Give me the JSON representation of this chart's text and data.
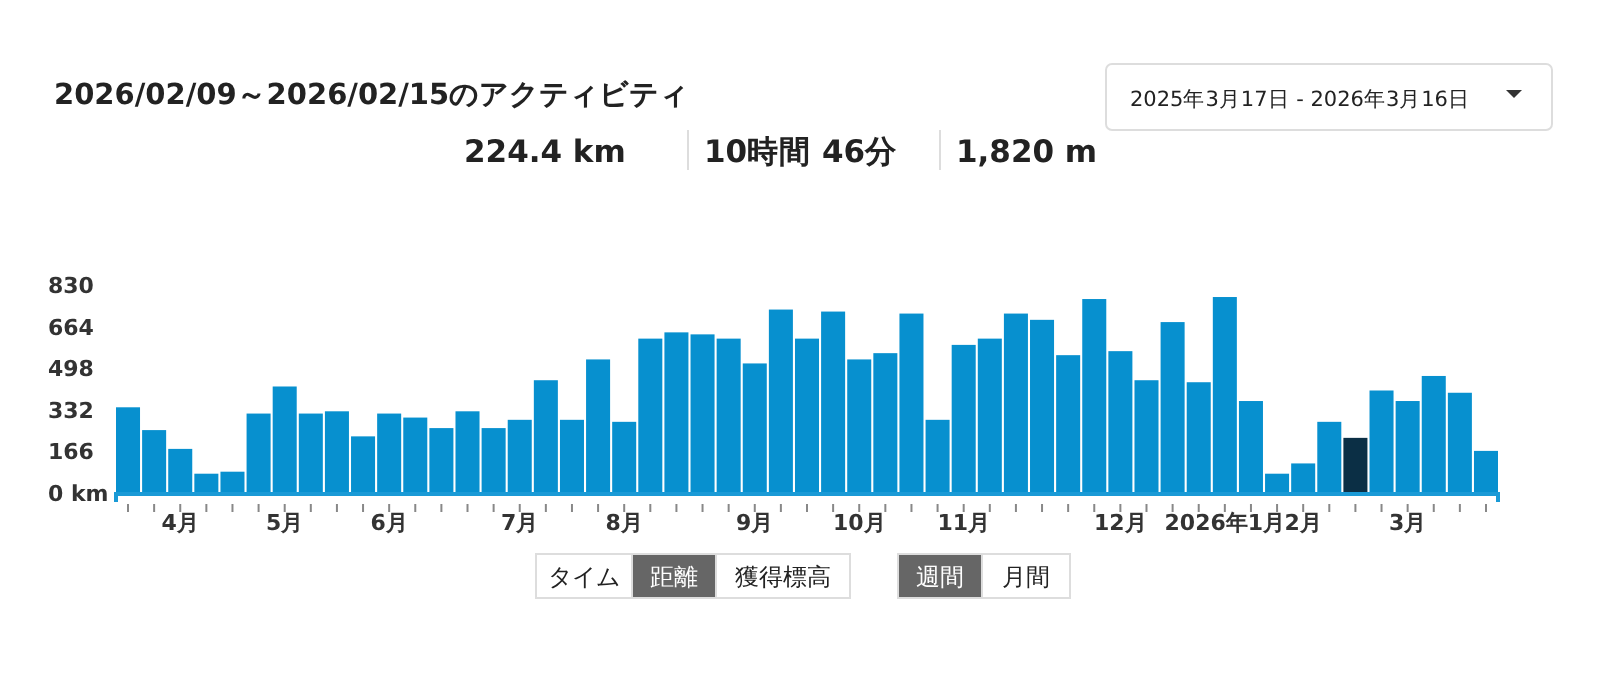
{
  "chart_data": {
    "type": "bar",
    "title": "2026/02/09～2026/02/15のアクティビティ",
    "categories": [
      null,
      null,
      "4月",
      null,
      null,
      null,
      "5月",
      null,
      null,
      null,
      "6月",
      null,
      null,
      null,
      null,
      "7月",
      null,
      null,
      null,
      "8月",
      null,
      null,
      null,
      null,
      "9月",
      null,
      null,
      null,
      "10月",
      null,
      null,
      null,
      "11月",
      null,
      null,
      null,
      null,
      null,
      "12月",
      null,
      null,
      null,
      "2026年1月",
      null,
      null,
      "2月",
      null,
      null,
      null,
      "3月",
      null,
      null,
      null
    ],
    "values": [
      346,
      255,
      180,
      81,
      89,
      321,
      429,
      321,
      330,
      230,
      321,
      305,
      263,
      330,
      263,
      296,
      454,
      296,
      537,
      288,
      620,
      645,
      637,
      620,
      521,
      736,
      620,
      728,
      537,
      562,
      720,
      296,
      595,
      620,
      720,
      695,
      554,
      778,
      570,
      454,
      686,
      446,
      786,
      371,
      81,
      122,
      288,
      224,
      413,
      371,
      471,
      404,
      172
    ],
    "colors": [
      "#0790cf",
      "#0790cf",
      "#0790cf",
      "#0790cf",
      "#0790cf",
      "#0790cf",
      "#0790cf",
      "#0790cf",
      "#0790cf",
      "#0790cf",
      "#0790cf",
      "#0790cf",
      "#0790cf",
      "#0790cf",
      "#0790cf",
      "#0790cf",
      "#0790cf",
      "#0790cf",
      "#0790cf",
      "#0790cf",
      "#0790cf",
      "#0790cf",
      "#0790cf",
      "#0790cf",
      "#0790cf",
      "#0790cf",
      "#0790cf",
      "#0790cf",
      "#0790cf",
      "#0790cf",
      "#0790cf",
      "#0790cf",
      "#0790cf",
      "#0790cf",
      "#0790cf",
      "#0790cf",
      "#0790cf",
      "#0790cf",
      "#0790cf",
      "#0790cf",
      "#0790cf",
      "#0790cf",
      "#0790cf",
      "#0790cf",
      "#0790cf",
      "#0790cf",
      "#0790cf",
      "#0b2f45",
      "#0790cf",
      "#0790cf",
      "#0790cf",
      "#0790cf",
      "#0790cf"
    ],
    "ylim": [
      0,
      830
    ],
    "yticks": [
      {
        "value": 0,
        "label": "0 km"
      },
      166,
      332,
      498,
      664,
      830
    ],
    "grid": false,
    "annotations": [
      "224.4 km",
      "10時間 46分",
      "1,820 m",
      "2025年3月17日 - 2026年3月16日",
      "タイム",
      "距離",
      "獲得標高",
      "週間",
      "月間"
    ]
  }
}
